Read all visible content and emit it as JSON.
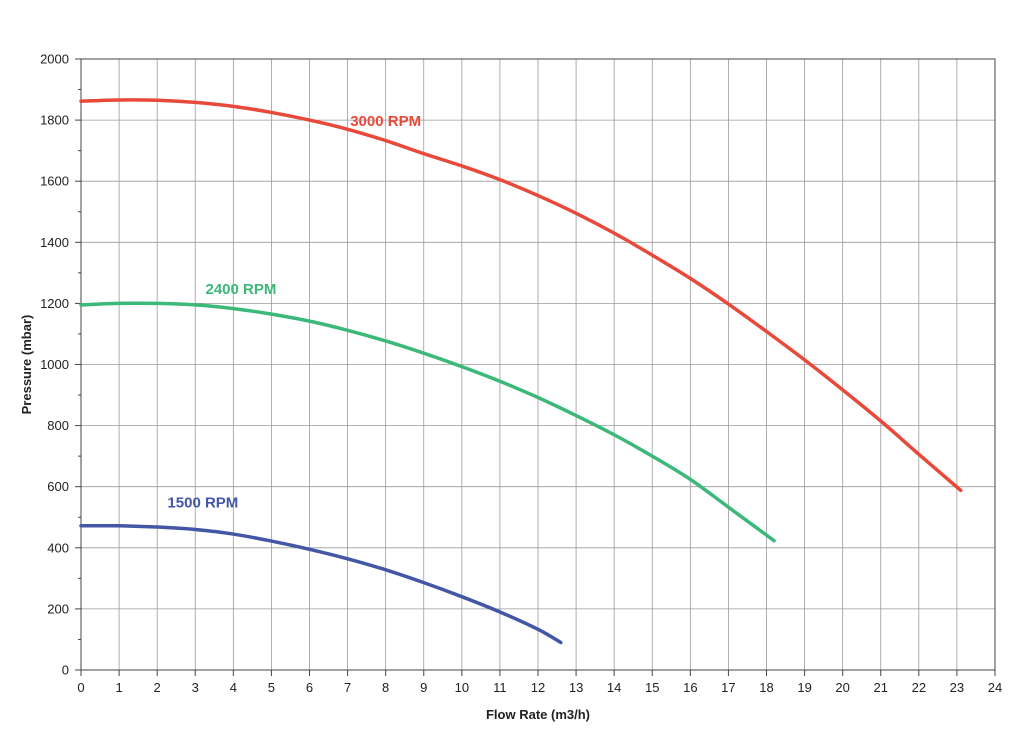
{
  "chart_data": {
    "type": "line",
    "title": "",
    "xlabel": "Flow Rate (m3/h)",
    "ylabel": "Pressure (mbar)",
    "xlim": [
      0,
      24
    ],
    "ylim": [
      0,
      2000
    ],
    "x_ticks": [
      0,
      1,
      2,
      3,
      4,
      5,
      6,
      7,
      8,
      9,
      10,
      11,
      12,
      13,
      14,
      15,
      16,
      17,
      18,
      19,
      20,
      21,
      22,
      23,
      24
    ],
    "y_ticks": [
      0,
      200,
      400,
      600,
      800,
      1000,
      1200,
      1400,
      1600,
      1800,
      2000
    ],
    "grid": true,
    "series": [
      {
        "name": "3000 RPM",
        "color": "#e8493a",
        "label_at": [
          8.0,
          1780
        ],
        "points": [
          [
            0,
            1862
          ],
          [
            1,
            1866
          ],
          [
            2,
            1865
          ],
          [
            3,
            1858
          ],
          [
            4,
            1845
          ],
          [
            5,
            1825
          ],
          [
            6,
            1800
          ],
          [
            7,
            1770
          ],
          [
            8,
            1733
          ],
          [
            9,
            1690
          ],
          [
            10,
            1650
          ],
          [
            11,
            1605
          ],
          [
            12,
            1553
          ],
          [
            13,
            1495
          ],
          [
            14,
            1430
          ],
          [
            15,
            1358
          ],
          [
            16,
            1282
          ],
          [
            17,
            1198
          ],
          [
            18,
            1108
          ],
          [
            19,
            1015
          ],
          [
            20,
            917
          ],
          [
            21,
            815
          ],
          [
            22,
            706
          ],
          [
            23.1,
            588
          ]
        ]
      },
      {
        "name": "2400 RPM",
        "color": "#3cb878",
        "label_at": [
          4.2,
          1230
        ],
        "points": [
          [
            0,
            1195
          ],
          [
            1,
            1200
          ],
          [
            2,
            1200
          ],
          [
            3,
            1195
          ],
          [
            4,
            1183
          ],
          [
            5,
            1165
          ],
          [
            6,
            1142
          ],
          [
            7,
            1112
          ],
          [
            8,
            1077
          ],
          [
            9,
            1037
          ],
          [
            10,
            993
          ],
          [
            11,
            945
          ],
          [
            12,
            892
          ],
          [
            13,
            833
          ],
          [
            14,
            770
          ],
          [
            15,
            700
          ],
          [
            16,
            624
          ],
          [
            17,
            533
          ],
          [
            18.2,
            423
          ]
        ]
      },
      {
        "name": "1500 RPM",
        "color": "#4357a6",
        "label_at": [
          3.2,
          532
        ],
        "points": [
          [
            0,
            472
          ],
          [
            1,
            472
          ],
          [
            2,
            468
          ],
          [
            3,
            460
          ],
          [
            4,
            445
          ],
          [
            5,
            422
          ],
          [
            6,
            395
          ],
          [
            7,
            364
          ],
          [
            8,
            328
          ],
          [
            9,
            286
          ],
          [
            10,
            240
          ],
          [
            11,
            190
          ],
          [
            12,
            133
          ],
          [
            12.6,
            90
          ]
        ]
      }
    ]
  }
}
